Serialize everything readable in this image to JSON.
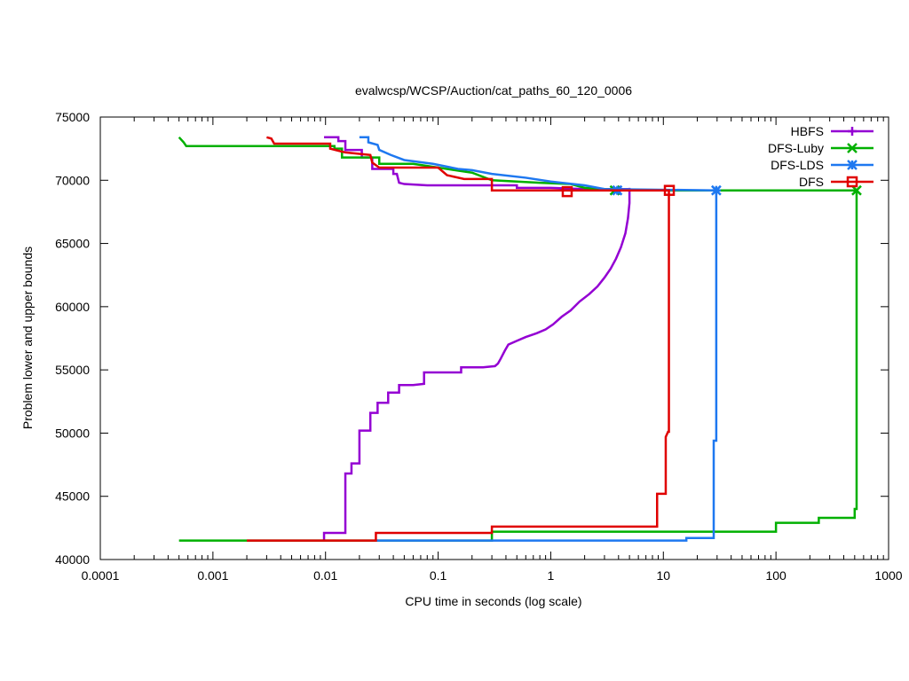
{
  "chart_data": {
    "type": "line",
    "title": "evalwcsp/WCSP/Auction/cat_paths_60_120_0006",
    "xlabel": "CPU time in seconds (log scale)",
    "ylabel": "Problem lower and upper bounds",
    "xscale": "log",
    "xlim": [
      0.0001,
      1000
    ],
    "ylim": [
      40000,
      75000
    ],
    "xticks": [
      {
        "value": 0.0001,
        "label": "0.0001"
      },
      {
        "value": 0.001,
        "label": "0.001"
      },
      {
        "value": 0.01,
        "label": "0.01"
      },
      {
        "value": 0.1,
        "label": "0.1"
      },
      {
        "value": 1,
        "label": "1"
      },
      {
        "value": 10,
        "label": "10"
      },
      {
        "value": 100,
        "label": "100"
      },
      {
        "value": 1000,
        "label": "1000"
      }
    ],
    "yticks": [
      {
        "value": 40000,
        "label": "40000"
      },
      {
        "value": 45000,
        "label": "45000"
      },
      {
        "value": 50000,
        "label": "50000"
      },
      {
        "value": 55000,
        "label": "55000"
      },
      {
        "value": 60000,
        "label": "60000"
      },
      {
        "value": 65000,
        "label": "65000"
      },
      {
        "value": 70000,
        "label": "70000"
      },
      {
        "value": 75000,
        "label": "75000"
      }
    ],
    "grid": false,
    "legend_position": "top-right",
    "series": [
      {
        "name": "HBFS",
        "color": "#9400d3",
        "marker": "plus",
        "upper": [
          [
            0.0097,
            73400
          ],
          [
            0.013,
            73400
          ],
          [
            0.013,
            73100
          ],
          [
            0.015,
            73100
          ],
          [
            0.015,
            72400
          ],
          [
            0.021,
            72400
          ],
          [
            0.021,
            71800
          ],
          [
            0.026,
            71800
          ],
          [
            0.026,
            70900
          ],
          [
            0.04,
            70900
          ],
          [
            0.04,
            70500
          ],
          [
            0.043,
            70500
          ],
          [
            0.045,
            69800
          ],
          [
            0.05,
            69700
          ],
          [
            0.08,
            69600
          ],
          [
            0.2,
            69600
          ],
          [
            0.5,
            69600
          ],
          [
            0.5,
            69400
          ],
          [
            1.0,
            69400
          ],
          [
            2.0,
            69300
          ],
          [
            4.2,
            69300
          ],
          [
            4.9,
            69300
          ]
        ],
        "lower": [
          [
            0.0097,
            41500
          ],
          [
            0.0097,
            42100
          ],
          [
            0.015,
            42100
          ],
          [
            0.015,
            46800
          ],
          [
            0.017,
            46800
          ],
          [
            0.017,
            47600
          ],
          [
            0.02,
            47600
          ],
          [
            0.02,
            50200
          ],
          [
            0.025,
            50200
          ],
          [
            0.025,
            51600
          ],
          [
            0.029,
            51600
          ],
          [
            0.029,
            52400
          ],
          [
            0.036,
            52400
          ],
          [
            0.036,
            53200
          ],
          [
            0.045,
            53200
          ],
          [
            0.045,
            53800
          ],
          [
            0.06,
            53800
          ],
          [
            0.075,
            53900
          ],
          [
            0.075,
            54800
          ],
          [
            0.16,
            54800
          ],
          [
            0.16,
            55200
          ],
          [
            0.25,
            55200
          ],
          [
            0.32,
            55300
          ],
          [
            0.34,
            55500
          ],
          [
            0.36,
            55900
          ],
          [
            0.39,
            56500
          ],
          [
            0.42,
            57000
          ],
          [
            0.5,
            57300
          ],
          [
            0.6,
            57600
          ],
          [
            0.75,
            57900
          ],
          [
            0.9,
            58200
          ],
          [
            1.05,
            58600
          ],
          [
            1.25,
            59200
          ],
          [
            1.5,
            59700
          ],
          [
            1.8,
            60400
          ],
          [
            2.2,
            61000
          ],
          [
            2.6,
            61600
          ],
          [
            3.0,
            62300
          ],
          [
            3.4,
            63000
          ],
          [
            3.8,
            63800
          ],
          [
            4.2,
            64700
          ],
          [
            4.6,
            65800
          ],
          [
            4.85,
            67000
          ],
          [
            5.0,
            68200
          ],
          [
            5.0,
            69400
          ]
        ],
        "marker_points": [
          [
            4.1,
            69200
          ]
        ]
      },
      {
        "name": "DFS-Luby",
        "color": "#00b000",
        "marker": "cross",
        "upper": [
          [
            0.0005,
            73400
          ],
          [
            0.00055,
            73000
          ],
          [
            0.00058,
            72700
          ],
          [
            0.012,
            72700
          ],
          [
            0.012,
            72500
          ],
          [
            0.014,
            72500
          ],
          [
            0.014,
            71800
          ],
          [
            0.03,
            71800
          ],
          [
            0.03,
            71300
          ],
          [
            0.06,
            71300
          ],
          [
            0.1,
            71000
          ],
          [
            0.2,
            70600
          ],
          [
            0.3,
            70000
          ],
          [
            0.8,
            69800
          ],
          [
            1.5,
            69700
          ],
          [
            2.0,
            69400
          ],
          [
            3.0,
            69300
          ],
          [
            4.0,
            69200
          ],
          [
            520,
            69200
          ]
        ],
        "lower": [
          [
            0.0005,
            41500
          ],
          [
            0.3,
            41500
          ],
          [
            0.3,
            42200
          ],
          [
            100,
            42200
          ],
          [
            100,
            42900
          ],
          [
            240,
            42900
          ],
          [
            240,
            43300
          ],
          [
            500,
            43300
          ],
          [
            500,
            44000
          ],
          [
            520,
            44000
          ],
          [
            520,
            69200
          ]
        ],
        "marker_points": [
          [
            3.7,
            69200
          ],
          [
            520,
            69200
          ]
        ]
      },
      {
        "name": "DFS-LDS",
        "color": "#1e78f0",
        "marker": "star",
        "upper": [
          [
            0.02,
            73400
          ],
          [
            0.024,
            73400
          ],
          [
            0.024,
            73000
          ],
          [
            0.029,
            72800
          ],
          [
            0.03,
            72400
          ],
          [
            0.038,
            72000
          ],
          [
            0.05,
            71600
          ],
          [
            0.09,
            71300
          ],
          [
            0.15,
            70900
          ],
          [
            0.2,
            70800
          ],
          [
            0.3,
            70500
          ],
          [
            0.6,
            70200
          ],
          [
            1.0,
            69900
          ],
          [
            2.0,
            69600
          ],
          [
            3.0,
            69300
          ],
          [
            30,
            69200
          ]
        ],
        "lower": [
          [
            0.028,
            41500
          ],
          [
            16,
            41500
          ],
          [
            16,
            41700
          ],
          [
            28,
            41700
          ],
          [
            28,
            49400
          ],
          [
            29.5,
            49400
          ],
          [
            29.5,
            69200
          ]
        ],
        "marker_points": [
          [
            3.9,
            69200
          ],
          [
            29.5,
            69200
          ]
        ]
      },
      {
        "name": "DFS",
        "color": "#e00000",
        "marker": "square",
        "upper": [
          [
            0.003,
            73400
          ],
          [
            0.0033,
            73300
          ],
          [
            0.0035,
            72900
          ],
          [
            0.011,
            72900
          ],
          [
            0.011,
            72500
          ],
          [
            0.015,
            72200
          ],
          [
            0.025,
            72000
          ],
          [
            0.026,
            71400
          ],
          [
            0.03,
            71000
          ],
          [
            0.1,
            71000
          ],
          [
            0.12,
            70400
          ],
          [
            0.17,
            70100
          ],
          [
            0.3,
            70100
          ],
          [
            0.3,
            69200
          ],
          [
            11.5,
            69200
          ]
        ],
        "lower": [
          [
            0.002,
            41500
          ],
          [
            0.028,
            41500
          ],
          [
            0.028,
            42100
          ],
          [
            0.3,
            42100
          ],
          [
            0.3,
            42600
          ],
          [
            8.8,
            42600
          ],
          [
            8.8,
            45200
          ],
          [
            10.5,
            45200
          ],
          [
            10.5,
            49700
          ],
          [
            11.0,
            50100
          ],
          [
            11.2,
            50100
          ],
          [
            11.2,
            69200
          ]
        ],
        "marker_points": [
          [
            1.4,
            69100
          ],
          [
            11.3,
            69200
          ]
        ]
      }
    ]
  }
}
